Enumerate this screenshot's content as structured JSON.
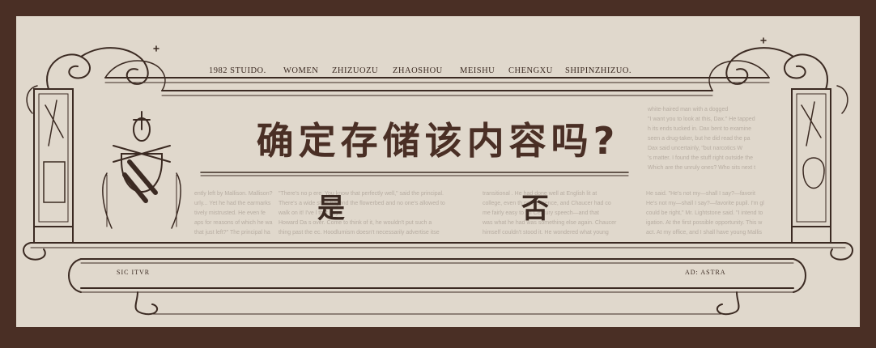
{
  "nav": {
    "items": [
      "1982 STUIDO.",
      "WOMEN",
      "ZHIZUOZU",
      "ZHAOSHOU",
      "MEISHU",
      "CHENGXU",
      "SHIPINZHIZUO."
    ]
  },
  "dialog": {
    "title": "确定存储该内容吗?",
    "yes_label": "是",
    "no_label": "否"
  },
  "mottos": {
    "left": "SIC ITVR",
    "right": "AD: ASTRA"
  },
  "background_text": {
    "top_right": [
      "white-haired man with a dogged",
      "\"I want you to look at this, Dax.\" He tapped",
      "h its ends tucked in. Dax bent to examine",
      "seen a drug-taker, but he did read the pa",
      "Dax said uncertainly, \"but narcotics W",
      "'s matter. I found the stuff right outside the",
      "Which are the unruly ones? Who sits next t"
    ],
    "col1": [
      "ently left by Mallison. Mallison?",
      "urly... Yet he had the earmarks",
      "tively mistrusted. He even fe",
      "aps for reasons of which he wa",
      "that just left?\" The principal ha"
    ],
    "col2": [
      "\"There's no p    ere. You know that perfectly well,\" said the principal.",
      "There's a wide st    ss beyond the flowerbed and no one's allowed to",
      "walk on it! I've l    that boy",
      "Howard Da    s over. Come to think of it, he wouldn't put such a",
      "thing past the    ec. Hoodlumism doesn't necessarily advertise itse"
    ],
    "col3": [
      "transitional     . He had done well at English lit at",
      "college, even th     ng in science, and Chaucer had co",
      "me fairly easy to     fth Century speech—and that",
      "was what he had     was something else again. Chaucer",
      "himself couldn't     stood it. He wondered what young"
    ],
    "col4": [
      "He said. \"He's not my—shall I say?—favorit",
      "He's not my—shall I say?—favorite pupil. I'm gl",
      "could be right,\" Mr. Lightstone said. \"I intend to",
      "igation. At the first possible opportunity. This w",
      "act. At my office, and I shall have young Mallis"
    ]
  }
}
